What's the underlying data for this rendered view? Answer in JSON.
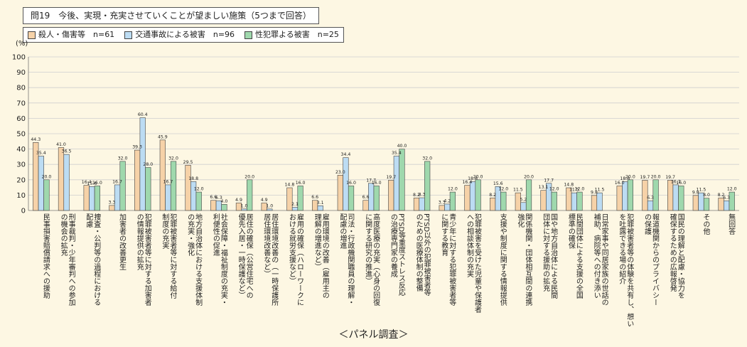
{
  "title": "問19　今後、実現・充実させていくことが望ましい施策（5つまで回答）",
  "footer": "＜パネル調査＞",
  "colors": {
    "s0": "#f6d2a8",
    "s1": "#bcdcf3",
    "s2": "#9fd8ad",
    "stroke": "#444444"
  },
  "chart_data": {
    "type": "bar",
    "ylabel": "(%)",
    "ylim": [
      0,
      100
    ],
    "yticks": [
      0,
      10,
      20,
      30,
      40,
      50,
      60,
      70,
      80,
      90,
      100
    ],
    "grid": true,
    "legend_position": "top-left",
    "series": [
      {
        "name": "殺人・傷害等　n=61",
        "values": [
          44.3,
          41.0,
          16.4,
          3.3,
          39.3,
          45.9,
          29.5,
          6.6,
          4.9,
          4.9,
          14.8,
          6.6,
          23.0,
          6.6,
          19.7,
          8.2,
          3.3,
          16.4,
          8.2,
          11.5,
          13.1,
          14.8,
          9.8,
          16.0,
          19.7,
          19.7,
          9.8,
          8.2
        ]
      },
      {
        "name": "交通事故による被害　n=96",
        "values": [
          35.4,
          36.5,
          15.6,
          16.7,
          60.4,
          16.7,
          18.8,
          6.3,
          1.0,
          1.0,
          2.1,
          3.1,
          34.4,
          17.7,
          35.4,
          8.3,
          4.2,
          18.8,
          15.6,
          5.2,
          17.7,
          11.5,
          11.5,
          18.8,
          6.3,
          16.7,
          11.5,
          6.3
        ]
      },
      {
        "name": "性犯罪よる被害　n=25",
        "values": [
          20.0,
          null,
          16.0,
          32.0,
          28.0,
          32.0,
          12.0,
          4.0,
          20.0,
          null,
          16.0,
          null,
          16.0,
          16.0,
          40.0,
          32.0,
          12.0,
          20.0,
          12.0,
          20.0,
          12.0,
          12.0,
          null,
          20.0,
          20.0,
          16.0,
          8.0,
          12.0
        ]
      }
    ],
    "data_labels": [
      [
        "44.3",
        "41.0",
        "16.4",
        "3.3",
        "39.3",
        "45.9",
        "29.5",
        "6.6",
        "4.9",
        "4.9",
        "14.8",
        "6.6",
        "23.0",
        "6.6",
        "19.7",
        "8.2",
        "3.3",
        "16.4",
        "8.2",
        "11.5",
        "13.1",
        "14.8",
        "9.8",
        "16.0",
        "19.7",
        "19.7",
        "9.8",
        "8.2"
      ],
      [
        "35.4",
        "36.5",
        "15.6",
        "16.7",
        "60.4",
        "16.7",
        "18.8",
        "6.3",
        "1.0",
        "1.0",
        "2.1",
        "3.1",
        "34.4",
        "17.7",
        "35.4",
        "8.3",
        "4.2",
        "18.8",
        "15.6",
        "5.2",
        "17.7",
        "11.5",
        "11.5",
        "18.8",
        "6.3",
        "16.7",
        "11.5",
        "6.3"
      ],
      [
        "20.0",
        "",
        "16.0",
        "32.0",
        "28.0",
        "32.0",
        "12.0",
        "4.0",
        "20.0",
        "",
        "16.0",
        "",
        "16.0",
        "16.0",
        "40.0",
        "32.0",
        "12.0",
        "20.0",
        "12.0",
        "20.0",
        "12.0",
        "12.0",
        "",
        "20.0",
        "20.0",
        "16.0",
        "8.0",
        "12.0"
      ]
    ],
    "categories": [
      [
        "民事損害賠償請求への援助"
      ],
      [
        "刑事裁判・少年審判への参加",
        "の機会の拡充"
      ],
      [
        "捜査・公判等の過程における",
        "配慮"
      ],
      [
        "加害者の改善更生"
      ],
      [
        "犯罪被害者等に対する加害者",
        "の情報提供の拡充"
      ],
      [
        "犯罪被害者等に対する給付",
        "制度の充実"
      ],
      [
        "地方自治体における支援体制",
        "の充実・強化"
      ],
      [
        "社会保障・福祉制度の充実・",
        "利便性の促進"
      ],
      [
        "居住の確保（公営住宅への",
        "優先入居・一時保護など）"
      ],
      [
        "居住環境改善の（一時保護所",
        "居住環境改善など）"
      ],
      [
        "雇用の確保（ハローワークに",
        "おける就労支援など）"
      ],
      [
        "雇用環境の改善（雇用主の",
        "理解の増進など）"
      ],
      [
        "司法・行政機関職員の理解・",
        "配慮の増進"
      ],
      [
        "高度医療の充実（心身の回復",
        "に関する研究の推進）"
      ],
      [
        "PTSD等重度ストレス反応",
        "の治療専門家の養成"
      ],
      [
        "PTSD以外の犯罪被害者等",
        "のための医療体制の整備"
      ],
      [
        "青少年に対する犯罪被害者等",
        "に関する教育"
      ],
      [
        "犯罪被害を受けた児童や保護者",
        "への相談体制の充実"
      ],
      [
        "支援や制度に関する情報提供"
      ],
      [
        "関係機関・団体相互間の連携",
        "強化"
      ],
      [
        "国や地方自治体による民間",
        "団体に対する援助の拡充"
      ],
      [
        "民間団体による支援の全国",
        "標準の確保"
      ],
      [
        "日常家事や同居家族の世話の",
        "補助、病院等への付き添い"
      ],
      [
        "犯罪被害者等の体験を共有し、想い",
        "を吐露できる場の紹介"
      ],
      [
        "報道機関からのプライバシー",
        "の保護"
      ],
      [
        "国民の理解と配慮・協力を",
        "確保するための広報啓発"
      ],
      [
        "その他"
      ],
      [
        "無回答"
      ]
    ]
  }
}
